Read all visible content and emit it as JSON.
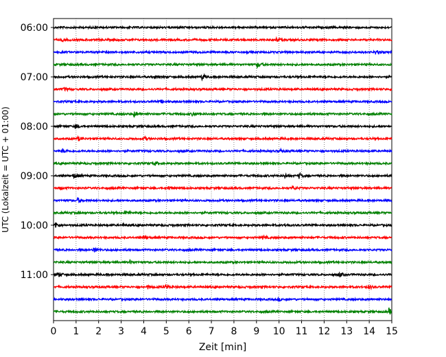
{
  "chart_data": {
    "type": "line",
    "title": "",
    "xlabel": "Zeit  [min]",
    "ylabel": "UTC (Lokalzeit = UTC + 01:00)",
    "xlim": [
      0,
      15
    ],
    "x_ticks": [
      "0",
      "1",
      "2",
      "3",
      "4",
      "5",
      "6",
      "7",
      "8",
      "9",
      "10",
      "11",
      "12",
      "13",
      "14",
      "15"
    ],
    "y_tick_labels": [
      "06:00",
      "07:00",
      "08:00",
      "09:00",
      "10:00",
      "11:00"
    ],
    "vertical_grid": true,
    "trace_colors": [
      "#000000",
      "#ff0000",
      "#0000ff",
      "#008000"
    ],
    "trace_start_times": [
      "06:00",
      "06:15",
      "06:30",
      "06:45",
      "07:00",
      "07:15",
      "07:30",
      "07:45",
      "08:00",
      "08:15",
      "08:30",
      "08:45",
      "09:00",
      "09:15",
      "09:30",
      "09:45",
      "10:00",
      "10:15",
      "10:30",
      "10:45",
      "11:00",
      "11:15",
      "11:30",
      "11:45"
    ],
    "events": [
      [],
      [
        [
          0.4,
          1.5
        ],
        [
          9.9,
          2.2
        ]
      ],
      [
        [
          14.3,
          3
        ]
      ],
      [
        [
          9.05,
          3.5
        ]
      ],
      [
        [
          4.5,
          1.2
        ],
        [
          6.6,
          3.5
        ]
      ],
      [
        [
          0.5,
          1.6
        ]
      ],
      [
        [
          4.8,
          1.5
        ]
      ],
      [
        [
          3.6,
          3
        ],
        [
          6.2,
          2.5
        ]
      ],
      [
        [
          1.0,
          3
        ]
      ],
      [
        [
          1.1,
          2.5
        ],
        [
          4.0,
          3
        ]
      ],
      [
        [
          0.4,
          2.5
        ],
        [
          10.1,
          1.8
        ]
      ],
      [
        [
          4.5,
          2.2
        ]
      ],
      [
        [
          0.9,
          3
        ],
        [
          10.3,
          2.5
        ],
        [
          10.9,
          3.5
        ]
      ],
      [
        [
          0.3,
          1.5
        ],
        [
          5.1,
          2
        ],
        [
          10.6,
          2.5
        ]
      ],
      [
        [
          1.1,
          3
        ]
      ],
      [
        [
          3.2,
          2.5
        ]
      ],
      [
        [
          0.1,
          4
        ],
        [
          3.1,
          1.5
        ],
        [
          10.3,
          1.5
        ]
      ],
      [
        [
          4.0,
          3
        ],
        [
          9.3,
          2
        ]
      ],
      [
        [
          1.8,
          3.5
        ]
      ],
      [
        [
          3.4,
          2.2
        ]
      ],
      [
        [
          0.2,
          4
        ],
        [
          12.7,
          2.5
        ]
      ],
      [
        [
          4.2,
          2
        ],
        [
          5.0,
          2
        ],
        [
          14.0,
          2.5
        ]
      ],
      [
        [
          10.0,
          1.5
        ]
      ],
      [
        [
          14.9,
          4
        ]
      ]
    ]
  }
}
